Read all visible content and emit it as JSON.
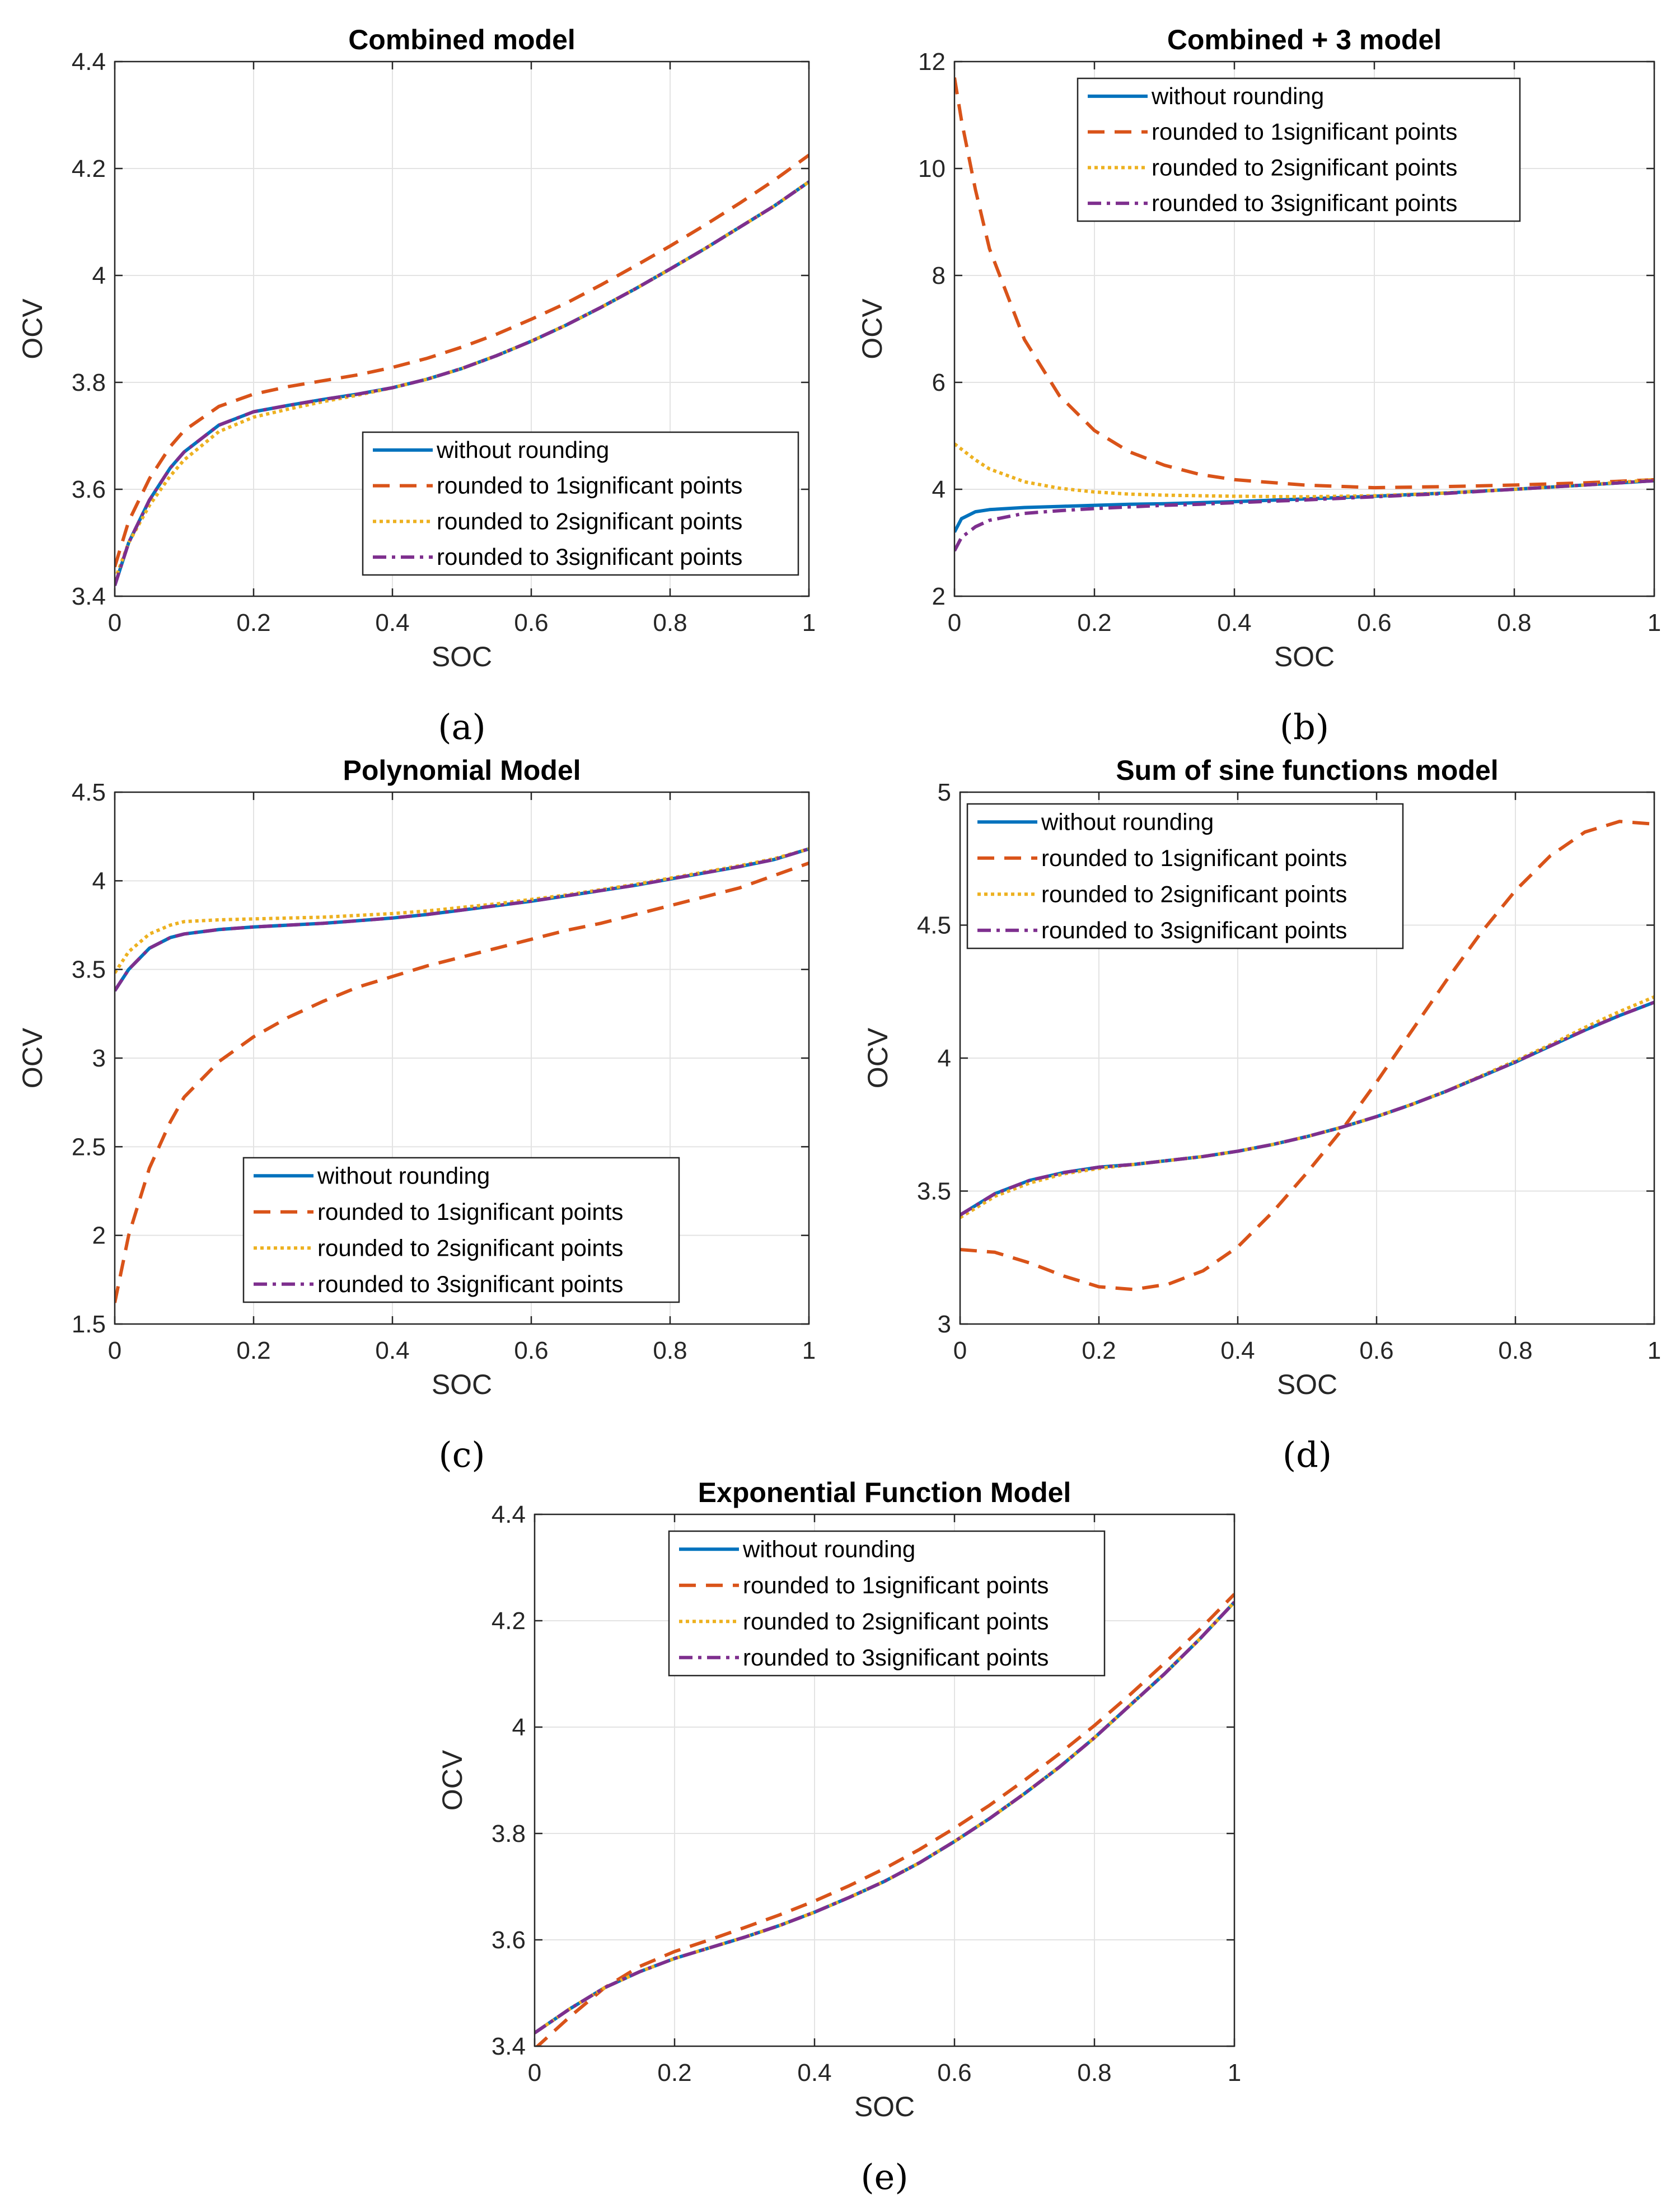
{
  "chart_data": [
    {
      "type": "line",
      "panel_label": "(a)",
      "title": "Combined model",
      "xlabel": "SOC",
      "ylabel": "OCV",
      "xlim": [
        0,
        1
      ],
      "ylim": [
        3.4,
        4.4
      ],
      "xticks": [
        0,
        0.2,
        0.4,
        0.6,
        0.8,
        1
      ],
      "yticks": [
        3.4,
        3.6,
        3.8,
        4.0,
        4.2,
        4.4
      ],
      "xtick_labels": [
        "0",
        "0.2",
        "0.4",
        "0.6",
        "0.8",
        "1"
      ],
      "ytick_labels": [
        "3.4",
        "3.6",
        "3.8",
        "4",
        "4.2",
        "4.4"
      ],
      "grid": true,
      "legend_position": "bottom-right",
      "x": [
        0,
        0.02,
        0.05,
        0.08,
        0.1,
        0.15,
        0.2,
        0.25,
        0.3,
        0.35,
        0.4,
        0.45,
        0.5,
        0.55,
        0.6,
        0.65,
        0.7,
        0.75,
        0.8,
        0.85,
        0.9,
        0.95,
        1.0
      ],
      "series": [
        {
          "name": "without rounding",
          "values": [
            3.42,
            3.5,
            3.58,
            3.64,
            3.67,
            3.72,
            3.745,
            3.757,
            3.768,
            3.778,
            3.79,
            3.806,
            3.826,
            3.85,
            3.877,
            3.907,
            3.94,
            3.975,
            4.012,
            4.05,
            4.09,
            4.13,
            4.175
          ]
        },
        {
          "name": "rounded to 1significant points",
          "values": [
            3.455,
            3.54,
            3.62,
            3.68,
            3.71,
            3.755,
            3.778,
            3.792,
            3.803,
            3.814,
            3.828,
            3.845,
            3.866,
            3.89,
            3.918,
            3.948,
            3.982,
            4.018,
            4.055,
            4.094,
            4.135,
            4.178,
            4.225
          ]
        },
        {
          "name": "rounded to 2significant points",
          "values": [
            3.43,
            3.5,
            3.57,
            3.625,
            3.655,
            3.708,
            3.735,
            3.75,
            3.764,
            3.776,
            3.79,
            3.806,
            3.826,
            3.85,
            3.877,
            3.907,
            3.94,
            3.975,
            4.012,
            4.05,
            4.09,
            4.13,
            4.175
          ]
        },
        {
          "name": "rounded to 3significant points",
          "values": [
            3.42,
            3.5,
            3.58,
            3.64,
            3.67,
            3.72,
            3.745,
            3.757,
            3.768,
            3.778,
            3.79,
            3.806,
            3.826,
            3.85,
            3.877,
            3.907,
            3.94,
            3.975,
            4.012,
            4.05,
            4.09,
            4.13,
            4.175
          ]
        }
      ]
    },
    {
      "type": "line",
      "panel_label": "(b)",
      "title": "Combined + 3 model",
      "xlabel": "SOC",
      "ylabel": "OCV",
      "xlim": [
        0,
        1
      ],
      "ylim": [
        2,
        12
      ],
      "xticks": [
        0,
        0.2,
        0.4,
        0.6,
        0.8,
        1
      ],
      "yticks": [
        2,
        4,
        6,
        8,
        10,
        12
      ],
      "xtick_labels": [
        "0",
        "0.2",
        "0.4",
        "0.6",
        "0.8",
        "1"
      ],
      "ytick_labels": [
        "2",
        "4",
        "6",
        "8",
        "10",
        "12"
      ],
      "grid": true,
      "legend_position": "top-center",
      "x": [
        0,
        0.01,
        0.03,
        0.05,
        0.1,
        0.15,
        0.2,
        0.25,
        0.3,
        0.35,
        0.4,
        0.5,
        0.6,
        0.7,
        0.8,
        0.9,
        1.0
      ],
      "series": [
        {
          "name": "without rounding",
          "values": [
            3.2,
            3.45,
            3.58,
            3.62,
            3.66,
            3.68,
            3.7,
            3.72,
            3.73,
            3.75,
            3.77,
            3.82,
            3.87,
            3.93,
            4.0,
            4.08,
            4.16
          ]
        },
        {
          "name": "rounded to 1significant points",
          "values": [
            11.7,
            10.9,
            9.6,
            8.5,
            6.8,
            5.75,
            5.1,
            4.7,
            4.45,
            4.28,
            4.18,
            4.08,
            4.03,
            4.05,
            4.08,
            4.12,
            4.18
          ]
        },
        {
          "name": "rounded to 2significant points",
          "values": [
            4.85,
            4.75,
            4.55,
            4.38,
            4.14,
            4.02,
            3.95,
            3.91,
            3.89,
            3.88,
            3.87,
            3.86,
            3.88,
            3.93,
            4.0,
            4.08,
            4.18
          ]
        },
        {
          "name": "rounded to 3significant points",
          "values": [
            2.85,
            3.1,
            3.3,
            3.42,
            3.55,
            3.6,
            3.64,
            3.67,
            3.7,
            3.72,
            3.75,
            3.8,
            3.86,
            3.92,
            4.0,
            4.08,
            4.16
          ]
        }
      ]
    },
    {
      "type": "line",
      "panel_label": "(c)",
      "title": "Polynomial Model",
      "xlabel": "SOC",
      "ylabel": "OCV",
      "xlim": [
        0,
        1
      ],
      "ylim": [
        1.5,
        4.5
      ],
      "xticks": [
        0,
        0.2,
        0.4,
        0.6,
        0.8,
        1
      ],
      "yticks": [
        1.5,
        2,
        2.5,
        3,
        3.5,
        4,
        4.5
      ],
      "xtick_labels": [
        "0",
        "0.2",
        "0.4",
        "0.6",
        "0.8",
        "1"
      ],
      "ytick_labels": [
        "1.5",
        "2",
        "2.5",
        "3",
        "3.5",
        "4",
        "4.5"
      ],
      "grid": true,
      "legend_position": "bottom-center",
      "x": [
        0,
        0.02,
        0.05,
        0.08,
        0.1,
        0.15,
        0.2,
        0.25,
        0.3,
        0.35,
        0.4,
        0.45,
        0.5,
        0.55,
        0.6,
        0.65,
        0.7,
        0.75,
        0.8,
        0.85,
        0.9,
        0.95,
        1.0
      ],
      "series": [
        {
          "name": "without rounding",
          "values": [
            3.38,
            3.5,
            3.62,
            3.68,
            3.7,
            3.725,
            3.74,
            3.75,
            3.76,
            3.775,
            3.79,
            3.81,
            3.835,
            3.86,
            3.885,
            3.915,
            3.945,
            3.975,
            4.01,
            4.045,
            4.08,
            4.12,
            4.18
          ]
        },
        {
          "name": "rounded to 1significant points",
          "values": [
            1.62,
            2.0,
            2.38,
            2.64,
            2.78,
            2.98,
            3.12,
            3.23,
            3.32,
            3.4,
            3.46,
            3.52,
            3.57,
            3.62,
            3.67,
            3.72,
            3.76,
            3.81,
            3.86,
            3.91,
            3.96,
            4.03,
            4.1
          ]
        },
        {
          "name": "rounded to 2significant points",
          "values": [
            3.48,
            3.6,
            3.7,
            3.75,
            3.77,
            3.78,
            3.785,
            3.79,
            3.795,
            3.805,
            3.815,
            3.83,
            3.85,
            3.87,
            3.895,
            3.92,
            3.95,
            3.98,
            4.015,
            4.05,
            4.085,
            4.125,
            4.18
          ]
        },
        {
          "name": "rounded to 3significant points",
          "values": [
            3.38,
            3.5,
            3.62,
            3.68,
            3.7,
            3.725,
            3.74,
            3.75,
            3.76,
            3.775,
            3.79,
            3.81,
            3.835,
            3.86,
            3.885,
            3.915,
            3.945,
            3.975,
            4.01,
            4.045,
            4.08,
            4.12,
            4.18
          ]
        }
      ]
    },
    {
      "type": "line",
      "panel_label": "(d)",
      "title": "Sum of sine functions model",
      "xlabel": "SOC",
      "ylabel": "OCV",
      "xlim": [
        0,
        1
      ],
      "ylim": [
        3,
        5
      ],
      "xticks": [
        0,
        0.2,
        0.4,
        0.6,
        0.8,
        1
      ],
      "yticks": [
        3,
        3.5,
        4,
        4.5,
        5
      ],
      "xtick_labels": [
        "0",
        "0.2",
        "0.4",
        "0.6",
        "0.8",
        "1"
      ],
      "ytick_labels": [
        "3",
        "3.5",
        "4",
        "4.5",
        "5"
      ],
      "grid": true,
      "legend_position": "top-left",
      "x": [
        0,
        0.05,
        0.1,
        0.15,
        0.2,
        0.25,
        0.3,
        0.35,
        0.4,
        0.45,
        0.5,
        0.55,
        0.6,
        0.65,
        0.7,
        0.75,
        0.8,
        0.85,
        0.9,
        0.95,
        1.0
      ],
      "series": [
        {
          "name": "without rounding",
          "values": [
            3.41,
            3.49,
            3.54,
            3.57,
            3.59,
            3.6,
            3.615,
            3.63,
            3.65,
            3.675,
            3.705,
            3.74,
            3.78,
            3.825,
            3.875,
            3.93,
            3.985,
            4.045,
            4.105,
            4.16,
            4.21
          ]
        },
        {
          "name": "rounded to 1significant points",
          "values": [
            3.28,
            3.27,
            3.23,
            3.18,
            3.14,
            3.13,
            3.15,
            3.2,
            3.29,
            3.42,
            3.57,
            3.73,
            3.91,
            4.1,
            4.29,
            4.47,
            4.63,
            4.76,
            4.85,
            4.89,
            4.88
          ]
        },
        {
          "name": "rounded to 2significant points",
          "values": [
            3.4,
            3.48,
            3.53,
            3.565,
            3.585,
            3.6,
            3.615,
            3.63,
            3.65,
            3.675,
            3.705,
            3.74,
            3.78,
            3.825,
            3.875,
            3.932,
            3.99,
            4.05,
            4.115,
            4.175,
            4.23
          ]
        },
        {
          "name": "rounded to 3significant points",
          "values": [
            3.41,
            3.49,
            3.54,
            3.57,
            3.59,
            3.6,
            3.615,
            3.63,
            3.65,
            3.675,
            3.705,
            3.74,
            3.78,
            3.825,
            3.875,
            3.93,
            3.985,
            4.045,
            4.105,
            4.16,
            4.21
          ]
        }
      ]
    },
    {
      "type": "line",
      "panel_label": "(e)",
      "title": "Exponential Function Model",
      "xlabel": "SOC",
      "ylabel": "OCV",
      "xlim": [
        0,
        1
      ],
      "ylim": [
        3.4,
        4.4
      ],
      "xticks": [
        0,
        0.2,
        0.4,
        0.6,
        0.8,
        1
      ],
      "yticks": [
        3.4,
        3.6,
        3.8,
        4.0,
        4.2,
        4.4
      ],
      "xtick_labels": [
        "0",
        "0.2",
        "0.4",
        "0.6",
        "0.8",
        "1"
      ],
      "ytick_labels": [
        "3.4",
        "3.6",
        "3.8",
        "4",
        "4.2",
        "4.4"
      ],
      "grid": true,
      "legend_position": "top-right",
      "x": [
        0,
        0.05,
        0.1,
        0.15,
        0.2,
        0.25,
        0.3,
        0.35,
        0.4,
        0.45,
        0.5,
        0.55,
        0.6,
        0.65,
        0.7,
        0.75,
        0.8,
        0.85,
        0.9,
        0.95,
        1.0
      ],
      "series": [
        {
          "name": "without rounding",
          "values": [
            3.425,
            3.47,
            3.51,
            3.54,
            3.565,
            3.585,
            3.605,
            3.627,
            3.652,
            3.68,
            3.71,
            3.745,
            3.785,
            3.828,
            3.875,
            3.925,
            3.98,
            4.04,
            4.1,
            4.165,
            4.235
          ]
        },
        {
          "name": "rounded to 1significant points",
          "values": [
            3.395,
            3.455,
            3.51,
            3.55,
            3.578,
            3.6,
            3.623,
            3.647,
            3.673,
            3.702,
            3.734,
            3.77,
            3.81,
            3.853,
            3.9,
            3.95,
            4.003,
            4.06,
            4.12,
            4.183,
            4.25
          ]
        },
        {
          "name": "rounded to 2significant points",
          "values": [
            3.425,
            3.47,
            3.51,
            3.54,
            3.565,
            3.585,
            3.605,
            3.627,
            3.652,
            3.68,
            3.71,
            3.745,
            3.785,
            3.828,
            3.875,
            3.925,
            3.98,
            4.04,
            4.1,
            4.165,
            4.235
          ]
        },
        {
          "name": "rounded to 3significant points",
          "values": [
            3.425,
            3.47,
            3.51,
            3.54,
            3.565,
            3.585,
            3.605,
            3.627,
            3.652,
            3.68,
            3.71,
            3.745,
            3.785,
            3.828,
            3.875,
            3.925,
            3.98,
            4.04,
            4.1,
            4.165,
            4.235
          ]
        }
      ]
    }
  ],
  "series_styles": [
    {
      "color": "#0072BD",
      "dash": "none",
      "width": 6
    },
    {
      "color": "#D95319",
      "dash": "30 18",
      "width": 6
    },
    {
      "color": "#EDB120",
      "dash": "6 6",
      "width": 6
    },
    {
      "color": "#7E2F8E",
      "dash": "24 10 6 10",
      "width": 6
    }
  ]
}
